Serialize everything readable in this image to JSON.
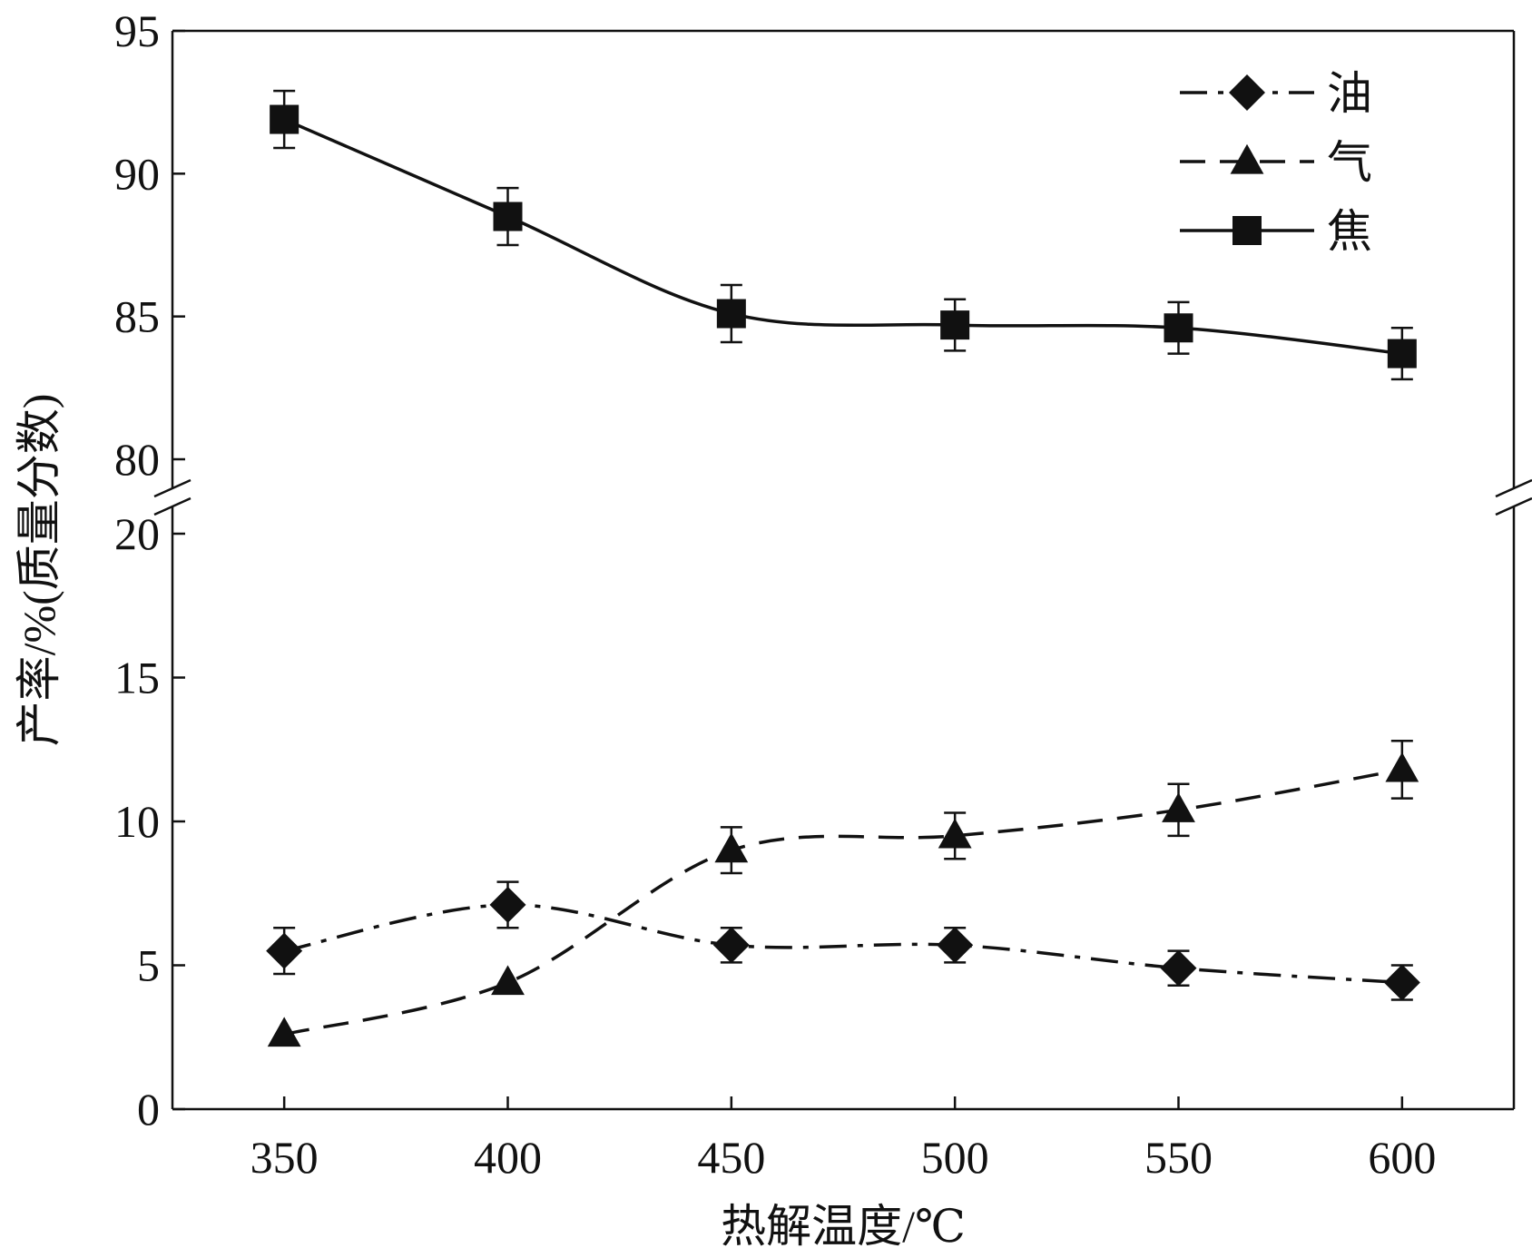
{
  "chart_data": {
    "type": "line",
    "xlabel": "热解温度/℃",
    "ylabel": "产率/%(质量分数)",
    "x": [
      350,
      400,
      450,
      500,
      550,
      600
    ],
    "xlim": [
      325,
      625
    ],
    "x_ticks": [
      350,
      400,
      450,
      500,
      550,
      600
    ],
    "y_axis_broken": true,
    "y_upper_range": [
      80,
      95
    ],
    "y_lower_range": [
      0,
      20
    ],
    "y_upper_ticks": [
      80,
      85,
      90,
      95
    ],
    "y_lower_ticks": [
      0,
      5,
      10,
      15,
      20
    ],
    "grid": false,
    "legend_position": "top-right",
    "series": [
      {
        "name": "油",
        "marker": "diamond",
        "line_style": "dash-dot",
        "values": [
          5.5,
          7.1,
          5.7,
          5.7,
          4.9,
          4.4
        ],
        "error": [
          0.8,
          0.8,
          0.6,
          0.6,
          0.6,
          0.6
        ],
        "color": "#111111"
      },
      {
        "name": "气",
        "marker": "triangle",
        "line_style": "dashed",
        "values": [
          2.6,
          4.4,
          9.0,
          9.5,
          10.4,
          11.8
        ],
        "error": [
          0.0,
          0.0,
          0.8,
          0.8,
          0.9,
          1.0
        ],
        "color": "#111111"
      },
      {
        "name": "焦",
        "marker": "square",
        "line_style": "solid",
        "values": [
          91.9,
          88.5,
          85.1,
          84.7,
          84.6,
          83.7
        ],
        "error": [
          1.0,
          1.0,
          1.0,
          0.9,
          0.9,
          0.9
        ],
        "color": "#111111"
      }
    ]
  }
}
